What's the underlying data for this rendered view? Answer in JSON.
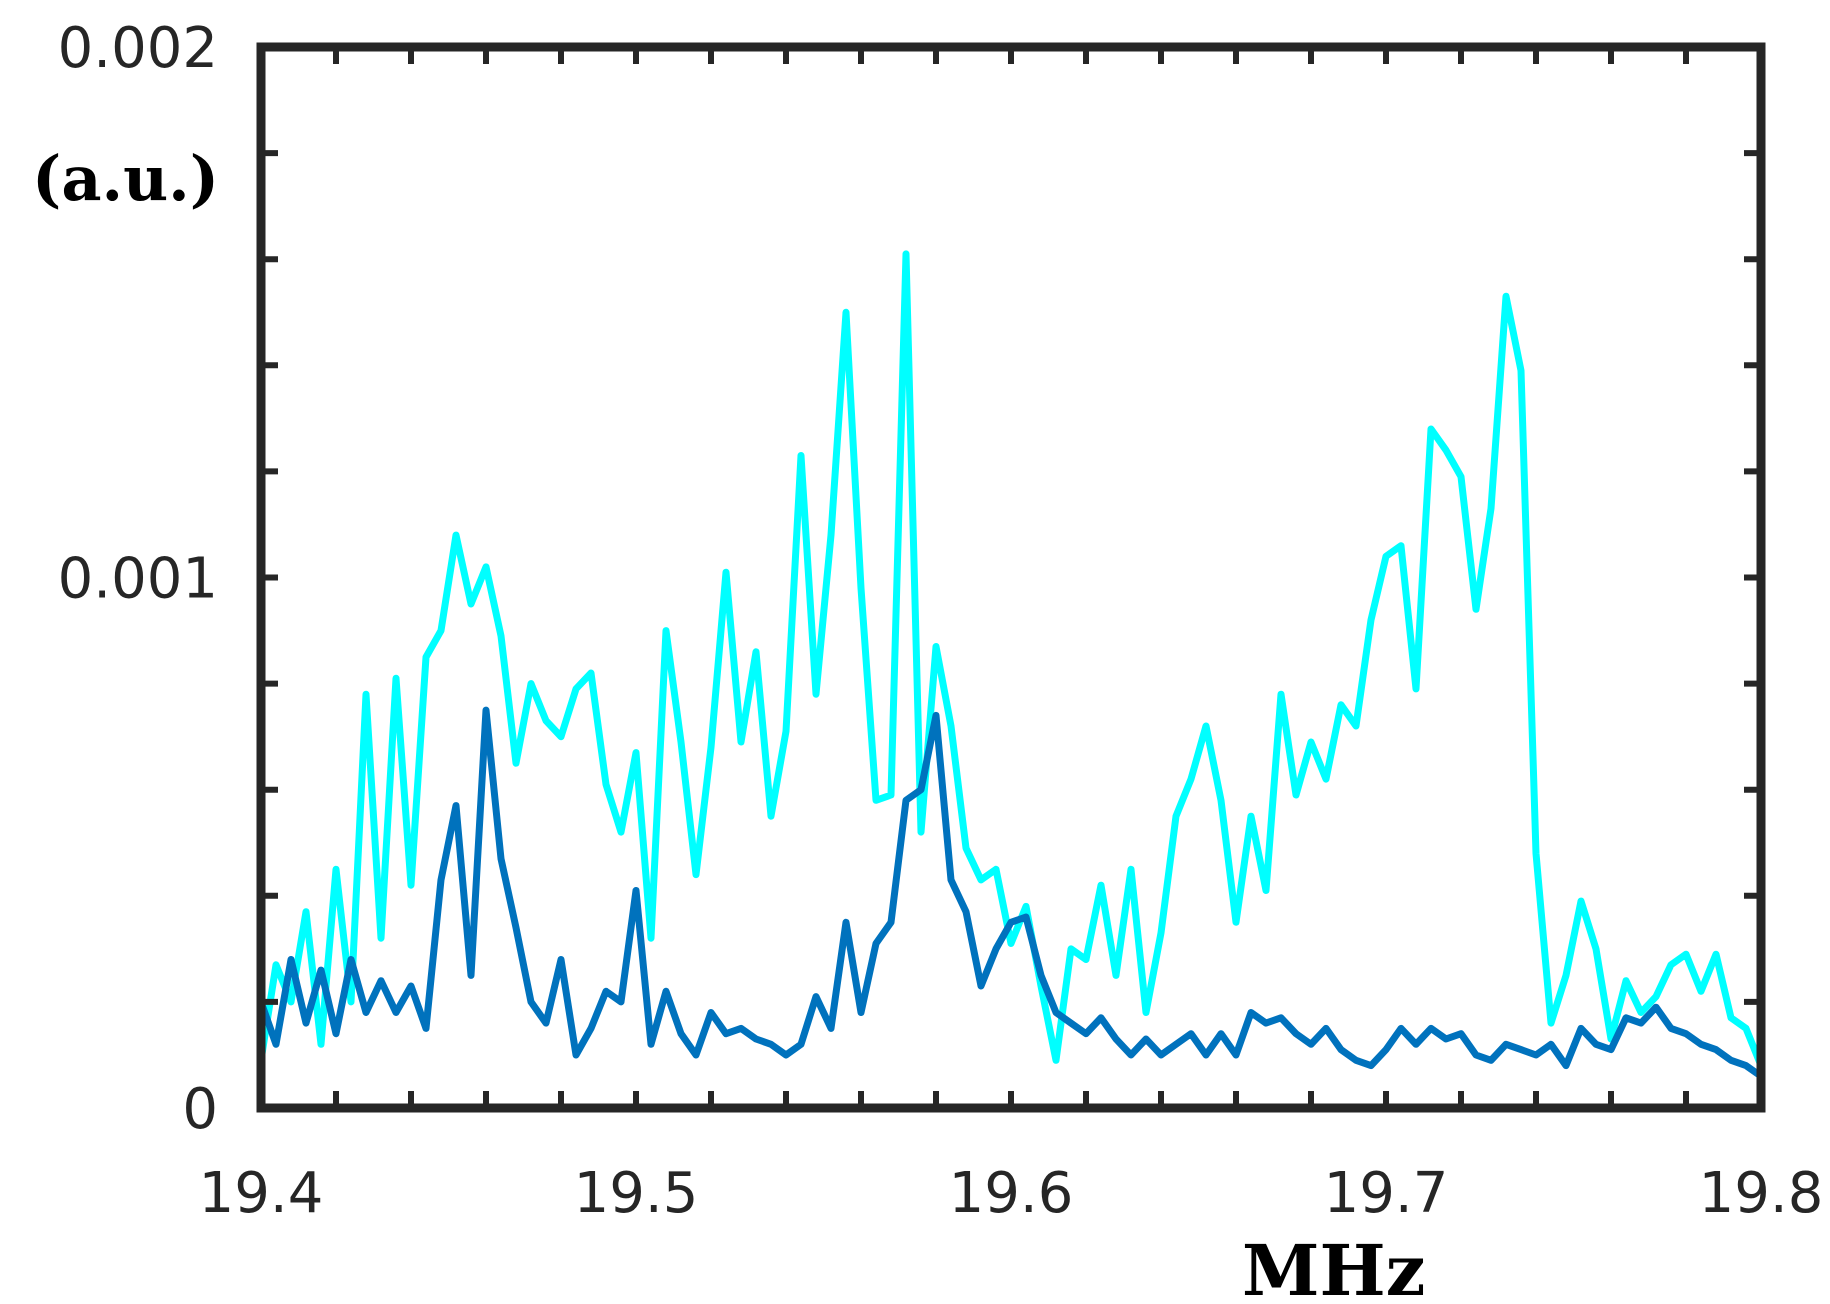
{
  "chart_data": {
    "type": "line",
    "xlabel": "MHz",
    "ylabel": "(a.u.)",
    "xlim": [
      19.4,
      19.8
    ],
    "ylim": [
      0,
      0.002
    ],
    "xticks": [
      "19.4",
      "19.5",
      "19.6",
      "19.7",
      "19.8"
    ],
    "yticks": [
      "0",
      "0.001",
      "0.002"
    ],
    "grid": false,
    "series": [
      {
        "color": "#00FFFF",
        "x": [
          19.4,
          19.404,
          19.408,
          19.412,
          19.416,
          19.42,
          19.424,
          19.428,
          19.432,
          19.436,
          19.44,
          19.444,
          19.448,
          19.452,
          19.456,
          19.46,
          19.464,
          19.468,
          19.472,
          19.476,
          19.48,
          19.484,
          19.488,
          19.492,
          19.496,
          19.5,
          19.504,
          19.508,
          19.512,
          19.516,
          19.52,
          19.524,
          19.528,
          19.532,
          19.536,
          19.54,
          19.544,
          19.548,
          19.552,
          19.556,
          19.56,
          19.564,
          19.568,
          19.572,
          19.576,
          19.58,
          19.584,
          19.588,
          19.592,
          19.596,
          19.6,
          19.604,
          19.608,
          19.612,
          19.616,
          19.62,
          19.624,
          19.628,
          19.632,
          19.636,
          19.64,
          19.644,
          19.648,
          19.652,
          19.656,
          19.66,
          19.664,
          19.668,
          19.672,
          19.676,
          19.68,
          19.684,
          19.688,
          19.692,
          19.696,
          19.7,
          19.704,
          19.708,
          19.712,
          19.716,
          19.72,
          19.724,
          19.728,
          19.732,
          19.736,
          19.74,
          19.744,
          19.748,
          19.752,
          19.756,
          19.76,
          19.764,
          19.768,
          19.772,
          19.776,
          19.78,
          19.784,
          19.788,
          19.792,
          19.796,
          19.8
        ],
        "values": [
          9e-05,
          0.00027,
          0.0002,
          0.00037,
          0.00012,
          0.00045,
          0.0002,
          0.00078,
          0.00032,
          0.00081,
          0.00042,
          0.00085,
          0.0009,
          0.00108,
          0.00095,
          0.00102,
          0.00089,
          0.00065,
          0.0008,
          0.00073,
          0.0007,
          0.00079,
          0.00082,
          0.00061,
          0.00052,
          0.00067,
          0.00032,
          0.0009,
          0.00069,
          0.00044,
          0.00068,
          0.00101,
          0.00069,
          0.00086,
          0.00055,
          0.00071,
          0.00123,
          0.00078,
          0.00108,
          0.0015,
          0.00098,
          0.00058,
          0.00059,
          0.00161,
          0.00052,
          0.00087,
          0.00072,
          0.00049,
          0.00043,
          0.00045,
          0.00031,
          0.00038,
          0.00023,
          9e-05,
          0.0003,
          0.00028,
          0.00042,
          0.00025,
          0.00045,
          0.00018,
          0.00033,
          0.00055,
          0.00062,
          0.00072,
          0.00058,
          0.00035,
          0.00055,
          0.00041,
          0.00078,
          0.00059,
          0.00069,
          0.00062,
          0.00076,
          0.00072,
          0.00092,
          0.00104,
          0.00106,
          0.00079,
          0.00128,
          0.00124,
          0.00119,
          0.00094,
          0.00113,
          0.00153,
          0.00139,
          0.00048,
          0.00016,
          0.00025,
          0.00039,
          0.0003,
          0.00013,
          0.00024,
          0.00018,
          0.00021,
          0.00027,
          0.00029,
          0.00022,
          0.00029,
          0.00017,
          0.00015,
          8e-05
        ]
      },
      {
        "color": "#0072BD",
        "x": [
          19.4,
          19.404,
          19.408,
          19.412,
          19.416,
          19.42,
          19.424,
          19.428,
          19.432,
          19.436,
          19.44,
          19.444,
          19.448,
          19.452,
          19.456,
          19.46,
          19.464,
          19.468,
          19.472,
          19.476,
          19.48,
          19.484,
          19.488,
          19.492,
          19.496,
          19.5,
          19.504,
          19.508,
          19.512,
          19.516,
          19.52,
          19.524,
          19.528,
          19.532,
          19.536,
          19.54,
          19.544,
          19.548,
          19.552,
          19.556,
          19.56,
          19.564,
          19.568,
          19.572,
          19.576,
          19.58,
          19.584,
          19.588,
          19.592,
          19.596,
          19.6,
          19.604,
          19.608,
          19.612,
          19.616,
          19.62,
          19.624,
          19.628,
          19.632,
          19.636,
          19.64,
          19.644,
          19.648,
          19.652,
          19.656,
          19.66,
          19.664,
          19.668,
          19.672,
          19.676,
          19.68,
          19.684,
          19.688,
          19.692,
          19.696,
          19.7,
          19.704,
          19.708,
          19.712,
          19.716,
          19.72,
          19.724,
          19.728,
          19.732,
          19.736,
          19.74,
          19.744,
          19.748,
          19.752,
          19.756,
          19.76,
          19.764,
          19.768,
          19.772,
          19.776,
          19.78,
          19.784,
          19.788,
          19.792,
          19.796,
          19.8
        ],
        "values": [
          0.0002,
          0.00012,
          0.00028,
          0.00016,
          0.00026,
          0.00014,
          0.00028,
          0.00018,
          0.00024,
          0.00018,
          0.00023,
          0.00015,
          0.00043,
          0.00057,
          0.00025,
          0.00075,
          0.00047,
          0.00034,
          0.0002,
          0.00016,
          0.00028,
          0.0001,
          0.00015,
          0.00022,
          0.0002,
          0.00041,
          0.00012,
          0.00022,
          0.00014,
          0.0001,
          0.00018,
          0.00014,
          0.00015,
          0.00013,
          0.00012,
          0.0001,
          0.00012,
          0.00021,
          0.00015,
          0.00035,
          0.00018,
          0.00031,
          0.00035,
          0.00058,
          0.0006,
          0.00074,
          0.00043,
          0.00037,
          0.00023,
          0.0003,
          0.00035,
          0.00036,
          0.00025,
          0.00018,
          0.00016,
          0.00014,
          0.00017,
          0.00013,
          0.0001,
          0.00013,
          0.0001,
          0.00012,
          0.00014,
          0.0001,
          0.00014,
          0.0001,
          0.00018,
          0.00016,
          0.00017,
          0.00014,
          0.00012,
          0.00015,
          0.00011,
          9e-05,
          8e-05,
          0.00011,
          0.00015,
          0.00012,
          0.00015,
          0.00013,
          0.00014,
          0.0001,
          9e-05,
          0.00012,
          0.00011,
          0.0001,
          0.00012,
          8e-05,
          0.00015,
          0.00012,
          0.00011,
          0.00017,
          0.00016,
          0.00019,
          0.00015,
          0.00014,
          0.00012,
          0.00011,
          9e-05,
          8e-05,
          6e-05
        ]
      }
    ]
  }
}
